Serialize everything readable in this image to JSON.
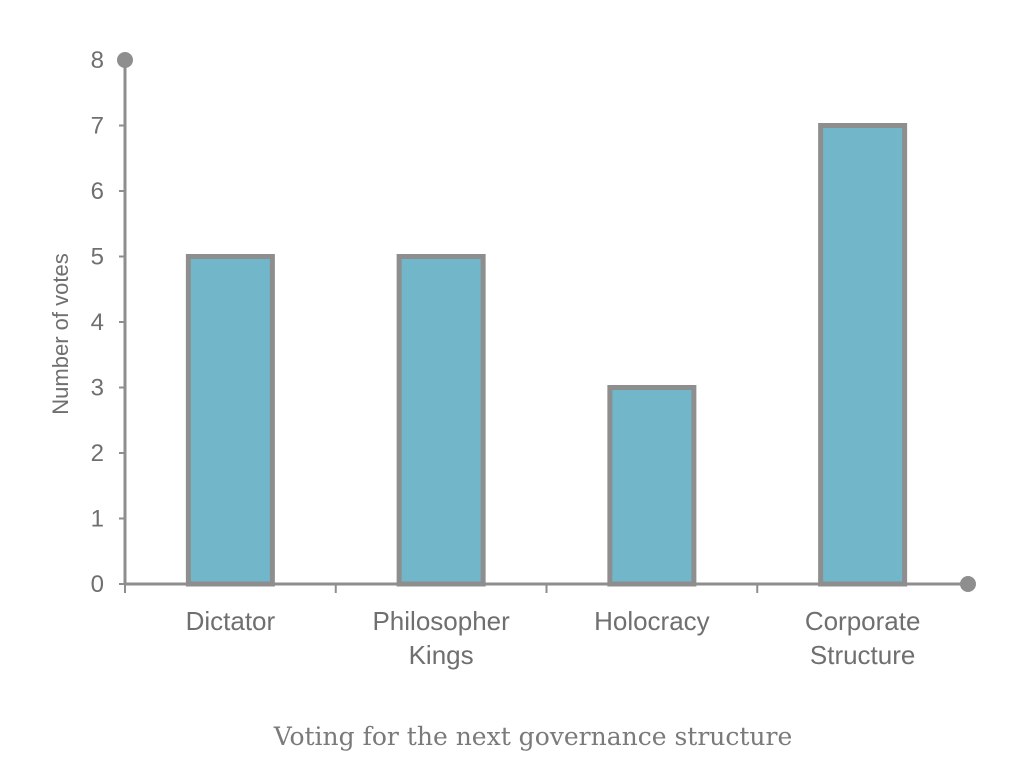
{
  "chart_data": {
    "type": "bar",
    "categories": [
      [
        "Dictator"
      ],
      [
        "Philosopher",
        "Kings"
      ],
      [
        "Holocracy"
      ],
      [
        "Corporate",
        "Structure"
      ]
    ],
    "values": [
      5,
      5,
      3,
      7
    ],
    "xlabel": "",
    "ylabel": "Number of votes",
    "ylim": [
      0,
      8
    ],
    "yticks": [
      "0",
      "1",
      "2",
      "3",
      "4",
      "5",
      "6",
      "7",
      "8"
    ],
    "grid": false,
    "legend": "none",
    "colors": {
      "bar_fill": "#72b6ca",
      "bar_stroke": "#8e8e8e",
      "axis": "#8e8e8e"
    }
  },
  "caption": "Voting for the next governance structure"
}
